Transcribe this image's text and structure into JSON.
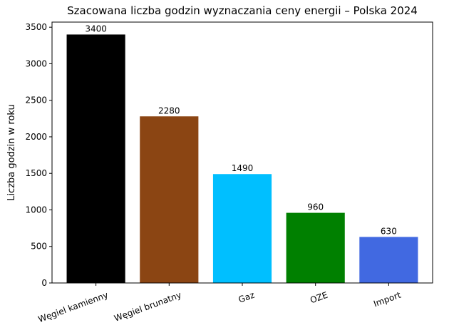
{
  "chart_data": {
    "type": "bar",
    "title": "Szacowana liczba godzin wyznaczania ceny energii – Polska 2024",
    "y_label": "Liczba godzin w roku",
    "categories": [
      "Węgiel kamienny",
      "Węgiel brunatny",
      "Gaz",
      "OZE",
      "Import"
    ],
    "values": [
      3400,
      2280,
      1490,
      960,
      630
    ],
    "colors": [
      "#000000",
      "#8b4513",
      "#00bfff",
      "#008000",
      "#4169e1"
    ],
    "ylim": [
      0,
      3570
    ],
    "yticks": [
      0,
      500,
      1000,
      1500,
      2000,
      2500,
      3000,
      3500
    ]
  }
}
